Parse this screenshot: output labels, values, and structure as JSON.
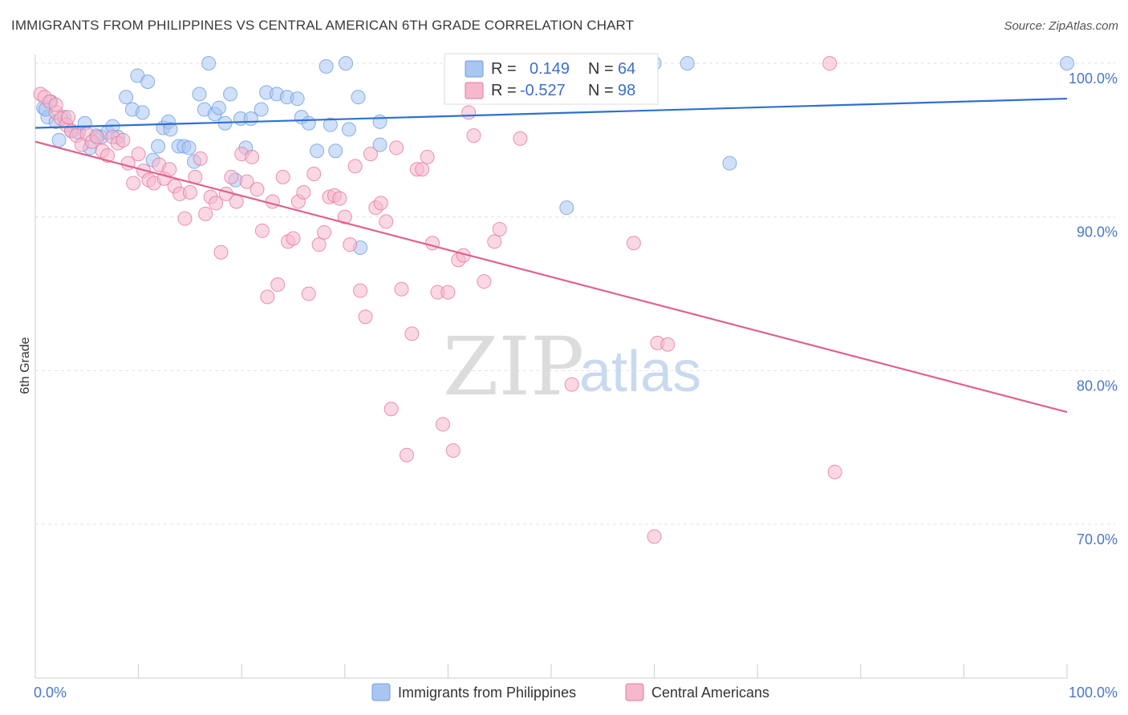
{
  "header": {
    "title": "IMMIGRANTS FROM PHILIPPINES VS CENTRAL AMERICAN 6TH GRADE CORRELATION CHART",
    "source": "Source: ZipAtlas.com"
  },
  "watermark": {
    "zip": "ZIP",
    "atlas": "atlas"
  },
  "legend_box": {
    "rows": [
      {
        "r_label": "R =",
        "r_value": "0.149",
        "n_label": "N =",
        "n_value": "64",
        "color": "#a9c6f2"
      },
      {
        "r_label": "R =",
        "r_value": "-0.527",
        "n_label": "N =",
        "n_value": "98",
        "color": "#f5b8cc"
      }
    ]
  },
  "bottom_legend": [
    {
      "label": "Immigrants from Philippines",
      "color": "#a9c6f2"
    },
    {
      "label": "Central Americans",
      "color": "#f5b8cc"
    }
  ],
  "chart_data": {
    "type": "scatter",
    "title": "IMMIGRANTS FROM PHILIPPINES VS CENTRAL AMERICAN 6TH GRADE CORRELATION CHART",
    "xlabel": "",
    "ylabel": "6th Grade",
    "xlim": [
      0,
      100
    ],
    "ylim": [
      59,
      101.5
    ],
    "y_ticks": [
      70,
      80,
      90,
      100
    ],
    "y_tick_labels": [
      "70.0%",
      "80.0%",
      "90.0%",
      "100.0%"
    ],
    "x_tick_labels": [
      "0.0%",
      "100.0%"
    ],
    "grid": true,
    "legend_position": "top-center",
    "series": [
      {
        "name": "Immigrants from Philippines",
        "color": "#6f9de3",
        "fill": "#a9c6f2",
        "r": 0.149,
        "n": 64,
        "trend": [
          [
            0,
            95.8
          ],
          [
            100,
            97.7
          ]
        ],
        "points": [
          [
            0.8,
            97.1
          ],
          [
            1.2,
            96.5
          ],
          [
            1.5,
            97.5
          ],
          [
            2.0,
            96.2
          ],
          [
            2.3,
            95.0
          ],
          [
            2.8,
            96.5
          ],
          [
            3.5,
            95.6
          ],
          [
            4.2,
            95.5
          ],
          [
            4.8,
            96.1
          ],
          [
            5.3,
            94.5
          ],
          [
            5.9,
            95.3
          ],
          [
            6.4,
            95.2
          ],
          [
            7.0,
            95.5
          ],
          [
            7.5,
            95.9
          ],
          [
            8.0,
            95.2
          ],
          [
            8.8,
            97.8
          ],
          [
            9.4,
            97.0
          ],
          [
            9.9,
            99.2
          ],
          [
            10.4,
            96.8
          ],
          [
            10.9,
            98.8
          ],
          [
            11.4,
            93.7
          ],
          [
            11.9,
            94.6
          ],
          [
            12.4,
            95.8
          ],
          [
            12.9,
            96.2
          ],
          [
            13.1,
            95.7
          ],
          [
            13.9,
            94.6
          ],
          [
            14.4,
            94.6
          ],
          [
            14.9,
            94.5
          ],
          [
            15.4,
            93.6
          ],
          [
            15.9,
            98.0
          ],
          [
            16.4,
            97.0
          ],
          [
            16.8,
            100.0
          ],
          [
            17.4,
            96.7
          ],
          [
            17.8,
            97.1
          ],
          [
            18.4,
            96.1
          ],
          [
            18.9,
            98.0
          ],
          [
            19.4,
            92.4
          ],
          [
            19.9,
            96.4
          ],
          [
            20.4,
            94.5
          ],
          [
            20.9,
            96.4
          ],
          [
            21.9,
            97.0
          ],
          [
            22.4,
            98.1
          ],
          [
            23.4,
            98.0
          ],
          [
            24.4,
            97.8
          ],
          [
            25.4,
            97.7
          ],
          [
            25.8,
            96.5
          ],
          [
            26.5,
            96.1
          ],
          [
            27.3,
            94.3
          ],
          [
            28.2,
            99.8
          ],
          [
            28.6,
            96.0
          ],
          [
            29.1,
            94.3
          ],
          [
            30.1,
            100.0
          ],
          [
            30.4,
            95.7
          ],
          [
            31.3,
            97.8
          ],
          [
            31.5,
            88.0
          ],
          [
            33.4,
            96.2
          ],
          [
            33.4,
            94.7
          ],
          [
            50.0,
            100.0
          ],
          [
            51.5,
            90.6
          ],
          [
            60.0,
            100.0
          ],
          [
            63.2,
            100.0
          ],
          [
            67.3,
            93.5
          ],
          [
            100.0,
            100.0
          ],
          [
            1.0,
            97.0
          ]
        ]
      },
      {
        "name": "Central Americans",
        "color": "#e8779f",
        "fill": "#f5b8cc",
        "r": -0.527,
        "n": 98,
        "trend": [
          [
            0,
            94.9
          ],
          [
            100,
            77.3
          ]
        ],
        "points": [
          [
            0.5,
            98.0
          ],
          [
            0.9,
            97.8
          ],
          [
            1.4,
            97.5
          ],
          [
            2.0,
            96.8
          ],
          [
            2.5,
            96.4
          ],
          [
            3.0,
            96.0
          ],
          [
            3.5,
            95.6
          ],
          [
            4.0,
            95.3
          ],
          [
            4.5,
            94.7
          ],
          [
            5.0,
            95.4
          ],
          [
            5.5,
            94.9
          ],
          [
            6.0,
            95.2
          ],
          [
            6.5,
            94.3
          ],
          [
            7.0,
            94.0
          ],
          [
            7.5,
            95.2
          ],
          [
            8.0,
            94.8
          ],
          [
            8.5,
            95.0
          ],
          [
            9.0,
            93.5
          ],
          [
            9.5,
            92.2
          ],
          [
            10.0,
            94.1
          ],
          [
            10.5,
            93.0
          ],
          [
            11.0,
            92.4
          ],
          [
            11.5,
            92.2
          ],
          [
            12.0,
            93.4
          ],
          [
            12.5,
            92.5
          ],
          [
            13.0,
            93.1
          ],
          [
            13.5,
            92.0
          ],
          [
            14.0,
            91.5
          ],
          [
            14.5,
            89.9
          ],
          [
            15.0,
            91.6
          ],
          [
            15.5,
            92.6
          ],
          [
            16.0,
            93.8
          ],
          [
            16.5,
            90.2
          ],
          [
            17.0,
            91.3
          ],
          [
            17.5,
            90.9
          ],
          [
            18.0,
            87.7
          ],
          [
            18.5,
            91.5
          ],
          [
            19.0,
            92.6
          ],
          [
            19.5,
            91.0
          ],
          [
            20.0,
            94.1
          ],
          [
            20.5,
            92.3
          ],
          [
            21.0,
            93.9
          ],
          [
            21.5,
            91.8
          ],
          [
            22.0,
            89.1
          ],
          [
            22.5,
            84.8
          ],
          [
            23.0,
            91.0
          ],
          [
            23.5,
            85.6
          ],
          [
            24.0,
            92.6
          ],
          [
            24.5,
            88.4
          ],
          [
            25.0,
            88.6
          ],
          [
            25.5,
            91.0
          ],
          [
            26.0,
            91.6
          ],
          [
            26.5,
            85.0
          ],
          [
            27.0,
            92.8
          ],
          [
            27.5,
            88.2
          ],
          [
            28.0,
            89.0
          ],
          [
            28.5,
            91.3
          ],
          [
            29.0,
            91.4
          ],
          [
            29.5,
            91.2
          ],
          [
            30.0,
            90.0
          ],
          [
            30.5,
            88.2
          ],
          [
            31.0,
            93.3
          ],
          [
            31.5,
            85.2
          ],
          [
            32.0,
            83.5
          ],
          [
            32.5,
            94.1
          ],
          [
            33.0,
            90.6
          ],
          [
            33.5,
            90.9
          ],
          [
            34.0,
            89.7
          ],
          [
            34.5,
            77.5
          ],
          [
            35.0,
            94.5
          ],
          [
            35.5,
            85.3
          ],
          [
            36.0,
            74.5
          ],
          [
            36.5,
            82.4
          ],
          [
            37.0,
            93.1
          ],
          [
            37.5,
            93.1
          ],
          [
            38.0,
            93.9
          ],
          [
            38.5,
            88.3
          ],
          [
            39.0,
            85.1
          ],
          [
            39.5,
            76.5
          ],
          [
            40.0,
            85.1
          ],
          [
            40.5,
            74.8
          ],
          [
            41.0,
            87.2
          ],
          [
            41.5,
            87.5
          ],
          [
            42.0,
            96.8
          ],
          [
            42.5,
            95.3
          ],
          [
            43.5,
            85.8
          ],
          [
            44.5,
            88.4
          ],
          [
            45.0,
            89.2
          ],
          [
            47.0,
            95.1
          ],
          [
            52.0,
            79.1
          ],
          [
            58.0,
            88.3
          ],
          [
            60.0,
            69.2
          ],
          [
            60.3,
            81.8
          ],
          [
            61.3,
            81.7
          ],
          [
            77.0,
            100.0
          ],
          [
            77.5,
            73.4
          ],
          [
            2.0,
            97.3
          ],
          [
            3.2,
            96.5
          ]
        ]
      }
    ]
  }
}
